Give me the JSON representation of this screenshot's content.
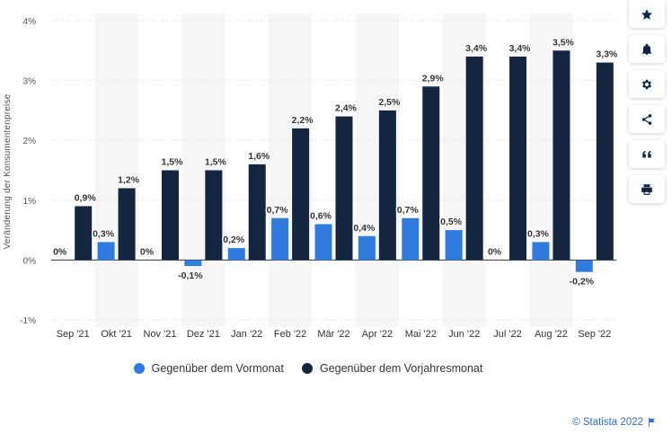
{
  "chart_data": {
    "type": "bar",
    "categories": [
      "Sep '21",
      "Okt '21",
      "Nov '21",
      "Dez '21",
      "Jan '22",
      "Feb '22",
      "Mär '22",
      "Apr '22",
      "Mai '22",
      "Jun '22",
      "Jul '22",
      "Aug '22",
      "Sep '22"
    ],
    "series": [
      {
        "name": "Gegenüber dem Vormonat",
        "color": "#2f7be0",
        "values": [
          0,
          0.3,
          0,
          -0.1,
          0.2,
          0.7,
          0.6,
          0.4,
          0.7,
          0.5,
          0,
          0.3,
          -0.2
        ],
        "labels": [
          "0%",
          "0,3%",
          "0%",
          "-0,1%",
          "0,2%",
          "0,7%",
          "0,6%",
          "0,4%",
          "0,7%",
          "0,5%",
          "0%",
          "0,3%",
          "-0,2%"
        ]
      },
      {
        "name": "Gegenüber dem Vorjahresmonat",
        "color": "#14263f",
        "values": [
          0.9,
          1.2,
          1.5,
          1.5,
          1.6,
          2.2,
          2.4,
          2.5,
          2.9,
          3.4,
          3.4,
          3.5,
          3.3
        ],
        "labels": [
          "0,9%",
          "1,2%",
          "1,5%",
          "1,5%",
          "1,6%",
          "2,2%",
          "2,4%",
          "2,5%",
          "2,9%",
          "3,4%",
          "3,4%",
          "3,5%",
          "3,3%"
        ]
      }
    ],
    "ylabel": "Veränderung der Konsumentenpreise",
    "ylim": [
      -1,
      4
    ],
    "yticks": [
      -1,
      0,
      1,
      2,
      3,
      4
    ],
    "ytick_labels": [
      "-1%",
      "0%",
      "1%",
      "2%",
      "3%",
      "4%"
    ],
    "grid": true,
    "legend_position": "bottom"
  },
  "toolbar": {
    "buttons": [
      "star-icon",
      "bell-icon",
      "gear-icon",
      "share-icon",
      "quote-icon",
      "print-icon"
    ]
  },
  "footer": {
    "copyright": "© Statista 2022"
  }
}
